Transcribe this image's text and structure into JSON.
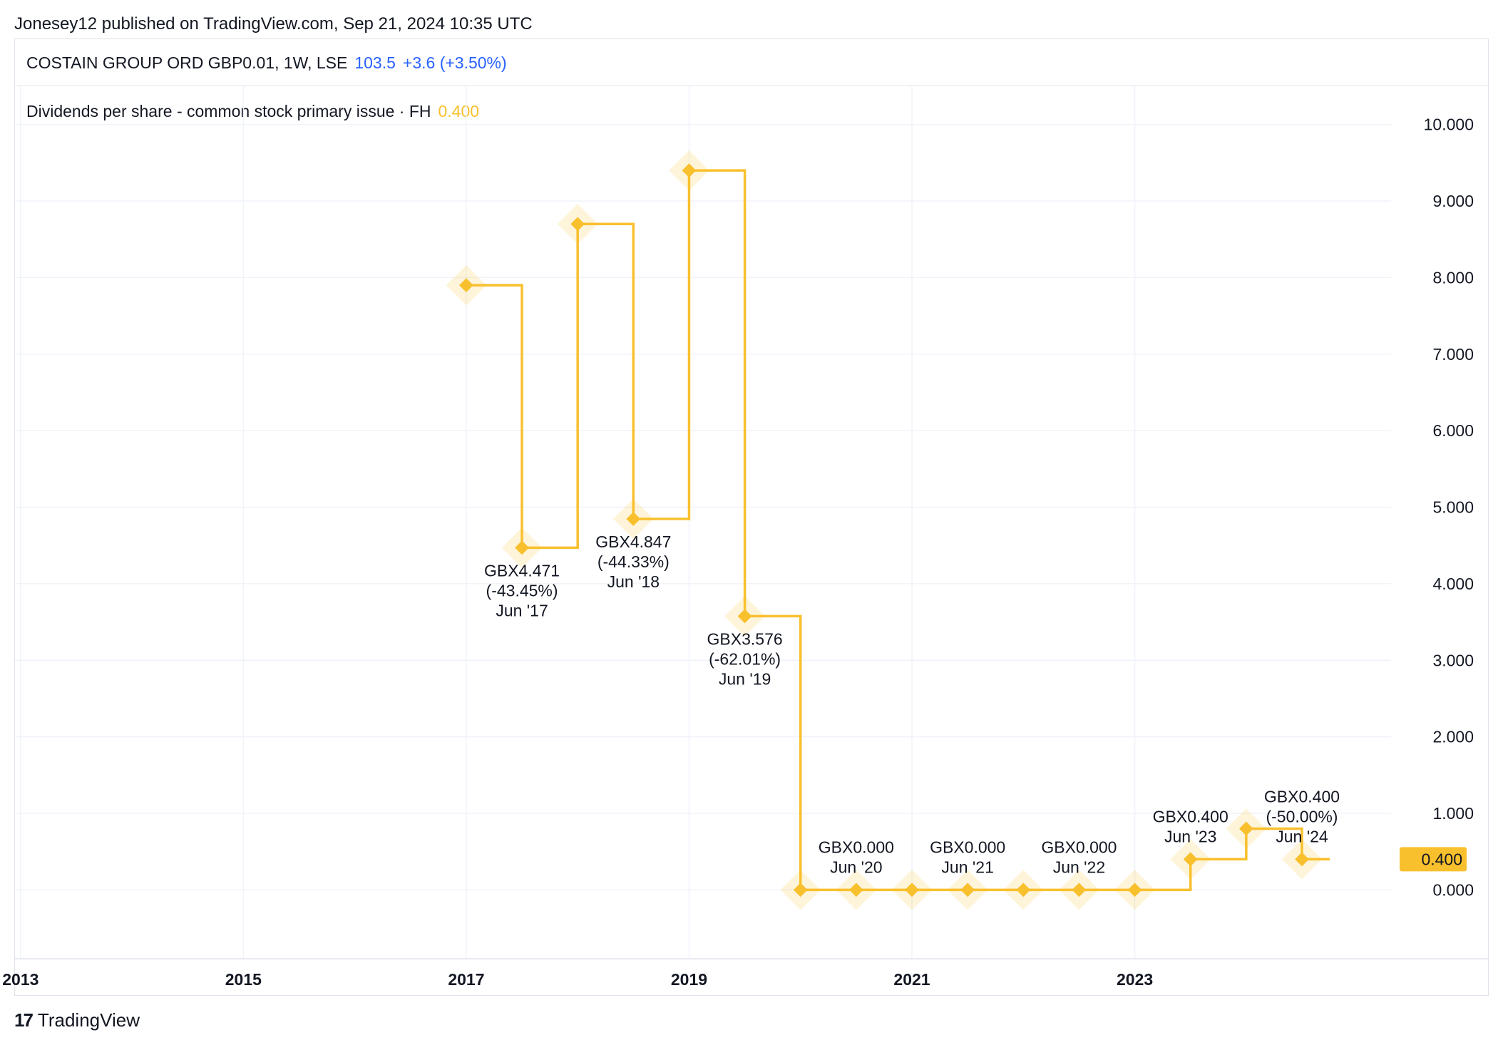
{
  "publish_line": "Jonesey12 published on TradingView.com, Sep 21, 2024 10:35 UTC",
  "header": {
    "symbol": "COSTAIN GROUP ORD GBP0.01, 1W, LSE",
    "price": "103.5",
    "change": "+3.6 (+3.50%)"
  },
  "legend": {
    "label": "Dividends per share - common stock primary issue · FH",
    "value": "0.400"
  },
  "brand": {
    "logo": "17",
    "name": "TradingView"
  },
  "colors": {
    "series": "#f9c02e",
    "accent": "#2962ff",
    "grid": "#f0f3fa",
    "text": "#131722"
  },
  "chart_data": {
    "type": "line",
    "step": true,
    "xlim": [
      2012.95,
      2025.3
    ],
    "ylim": [
      -0.9,
      10.5
    ],
    "x_ticks": [
      2013,
      2015,
      2017,
      2019,
      2021,
      2023
    ],
    "x_tick_labels": [
      "2013",
      "2015",
      "2017",
      "2019",
      "2021",
      "2023"
    ],
    "y_ticks": [
      0,
      1,
      2,
      3,
      4,
      5,
      6,
      7,
      8,
      9,
      10
    ],
    "y_tick_labels": [
      "0.000",
      "1.000",
      "2.000",
      "3.000",
      "4.000",
      "5.000",
      "6.000",
      "7.000",
      "8.000",
      "9.000",
      "10.000"
    ],
    "grid": true,
    "series": [
      {
        "name": "Dividends per share - common stock primary issue · FH",
        "points": [
          {
            "x": 2017.0,
            "y": 7.9
          },
          {
            "x": 2017.5,
            "y": 4.471
          },
          {
            "x": 2018.0,
            "y": 8.7
          },
          {
            "x": 2018.5,
            "y": 4.847
          },
          {
            "x": 2019.0,
            "y": 9.4
          },
          {
            "x": 2019.5,
            "y": 3.576
          },
          {
            "x": 2020.0,
            "y": 0.0
          },
          {
            "x": 2020.5,
            "y": 0.0
          },
          {
            "x": 2021.0,
            "y": 0.0
          },
          {
            "x": 2021.5,
            "y": 0.0
          },
          {
            "x": 2022.0,
            "y": 0.0
          },
          {
            "x": 2022.5,
            "y": 0.0
          },
          {
            "x": 2023.0,
            "y": 0.0
          },
          {
            "x": 2023.5,
            "y": 0.4
          },
          {
            "x": 2024.0,
            "y": 0.8
          },
          {
            "x": 2024.5,
            "y": 0.4
          }
        ],
        "end_x": 2024.75
      }
    ],
    "annotations": [
      {
        "x": 2017.5,
        "y": 4.471,
        "lines": [
          "GBX4.471",
          "(-43.45%)",
          "Jun '17"
        ],
        "placement": "below"
      },
      {
        "x": 2018.5,
        "y": 4.847,
        "lines": [
          "GBX4.847",
          "(-44.33%)",
          "Jun '18"
        ],
        "placement": "below"
      },
      {
        "x": 2019.5,
        "y": 3.576,
        "lines": [
          "GBX3.576",
          "(-62.01%)",
          "Jun '19"
        ],
        "placement": "below"
      },
      {
        "x": 2020.5,
        "y": 0.0,
        "lines": [
          "GBX0.000",
          "Jun '20"
        ],
        "placement": "above"
      },
      {
        "x": 2021.5,
        "y": 0.0,
        "lines": [
          "GBX0.000",
          "Jun '21"
        ],
        "placement": "above"
      },
      {
        "x": 2022.5,
        "y": 0.0,
        "lines": [
          "GBX0.000",
          "Jun '22"
        ],
        "placement": "above"
      },
      {
        "x": 2023.5,
        "y": 0.4,
        "lines": [
          "GBX0.400",
          "Jun '23"
        ],
        "placement": "above"
      },
      {
        "x": 2024.5,
        "y": 0.4,
        "lines": [
          "GBX0.400",
          "(-50.00%)",
          "Jun '24"
        ],
        "placement": "above"
      }
    ],
    "last_value_label": {
      "y": 0.4,
      "text": "0.400"
    }
  }
}
